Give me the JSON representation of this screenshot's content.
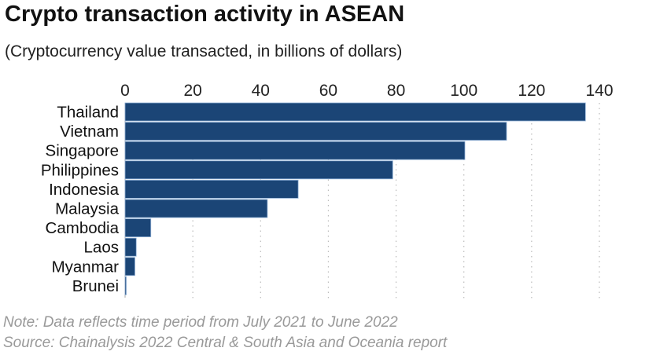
{
  "chart_data": {
    "type": "bar",
    "orientation": "horizontal",
    "title": "Crypto transaction activity in ASEAN",
    "subtitle": "(Cryptocurrency value transacted, in billions of dollars)",
    "categories": [
      "Thailand",
      "Vietnam",
      "Singapore",
      "Philippines",
      "Indonesia",
      "Malaysia",
      "Cambodia",
      "Laos",
      "Myanmar",
      "Brunei"
    ],
    "values": [
      135.9,
      112.6,
      100.3,
      79.0,
      51.1,
      42.0,
      7.6,
      3.3,
      2.9,
      0.3
    ],
    "xlim": [
      0,
      140
    ],
    "xticks": [
      0,
      20,
      40,
      60,
      80,
      100,
      120,
      140
    ],
    "grid": true,
    "bar_color": "#1b4576",
    "notes": [
      "Note: Data reflects time period from July 2021 to June 2022",
      "Source: Chainalysis 2022 Central & South Asia and Oceania report"
    ]
  }
}
